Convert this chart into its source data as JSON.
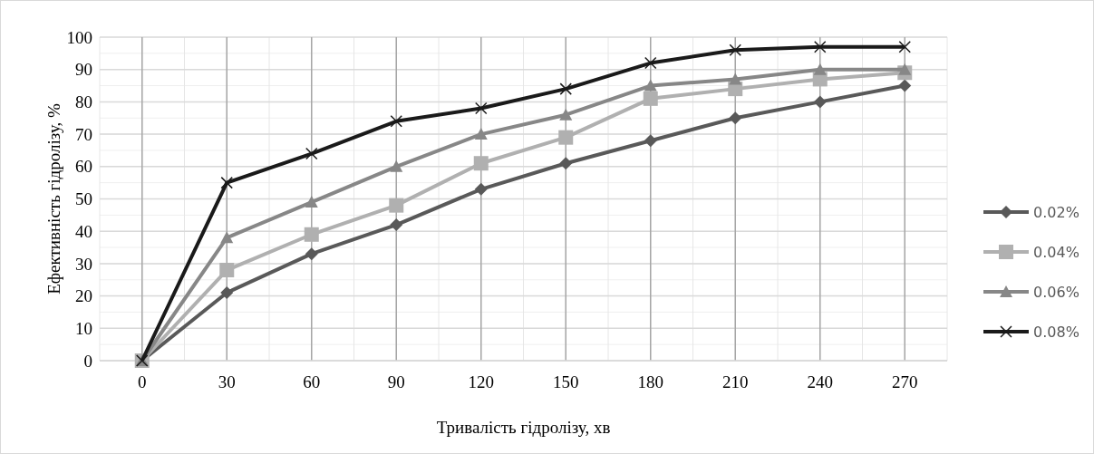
{
  "chart_data": {
    "type": "line",
    "xlabel": "Тривалість гідролізу, хв",
    "ylabel": "Ефективність гідролізу, %",
    "categories": [
      "0",
      "30",
      "60",
      "90",
      "120",
      "150",
      "180",
      "210",
      "240",
      "270"
    ],
    "ylim": [
      0,
      100
    ],
    "yticks": [
      0,
      10,
      20,
      30,
      40,
      50,
      60,
      70,
      80,
      90,
      100
    ],
    "grid": true,
    "legend": "right",
    "series": [
      {
        "name": "0.02%",
        "color": "#595959",
        "marker": "diamond",
        "values": [
          0,
          21,
          33,
          42,
          53,
          61,
          68,
          75,
          80,
          85
        ]
      },
      {
        "name": "0.04%",
        "color": "#b0b0b0",
        "marker": "square",
        "values": [
          0,
          28,
          39,
          48,
          61,
          69,
          81,
          84,
          87,
          89
        ]
      },
      {
        "name": "0.06%",
        "color": "#878787",
        "marker": "triangle",
        "values": [
          0,
          38,
          49,
          60,
          70,
          76,
          85,
          87,
          90,
          90
        ]
      },
      {
        "name": "0.08%",
        "color": "#1a1a1a",
        "marker": "cross",
        "values": [
          0,
          55,
          64,
          74,
          78,
          84,
          92,
          96,
          97,
          97
        ]
      }
    ]
  }
}
